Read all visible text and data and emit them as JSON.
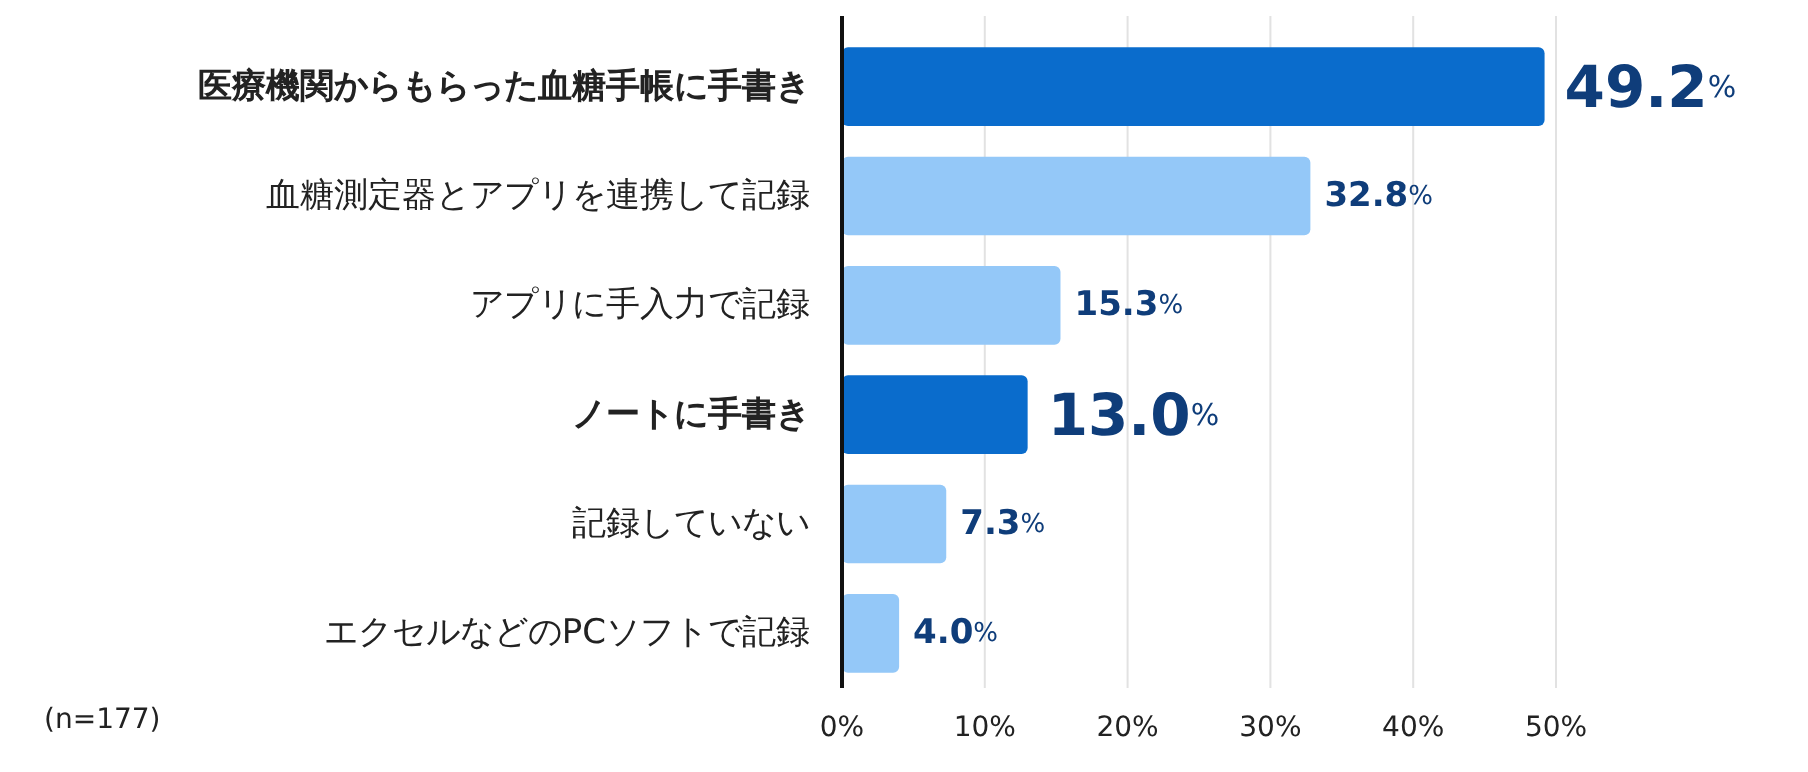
{
  "chart_data": {
    "type": "bar",
    "orientation": "horizontal",
    "categories": [
      "医療機関からもらった血糖手帳に手書き",
      "血糖測定器とアプリを連携して記録",
      "アプリに手入力で記録",
      "ノートに手書き",
      "記録していない",
      "エクセルなどのPCソフトで記録"
    ],
    "values": [
      49.2,
      32.8,
      15.3,
      13.0,
      7.3,
      4.0
    ],
    "colors": [
      "#0a6ccc",
      "#94c8f8",
      "#94c8f8",
      "#0a6ccc",
      "#94c8f8",
      "#94c8f8"
    ],
    "value_labels": [
      "49.2%",
      "32.8%",
      "15.3%",
      "13.0%",
      "7.3%",
      "4.0%"
    ],
    "xlim": [
      0,
      50
    ],
    "xticks": [
      {
        "value": 0,
        "label": "0%"
      },
      {
        "value": 10,
        "label": "10%"
      },
      {
        "value": 20,
        "label": "20%"
      },
      {
        "value": 30,
        "label": "30%"
      },
      {
        "value": 40,
        "label": "40%"
      },
      {
        "value": 50,
        "label": "50%"
      }
    ],
    "grid": "x",
    "annotations": [
      "(n=177)"
    ]
  }
}
